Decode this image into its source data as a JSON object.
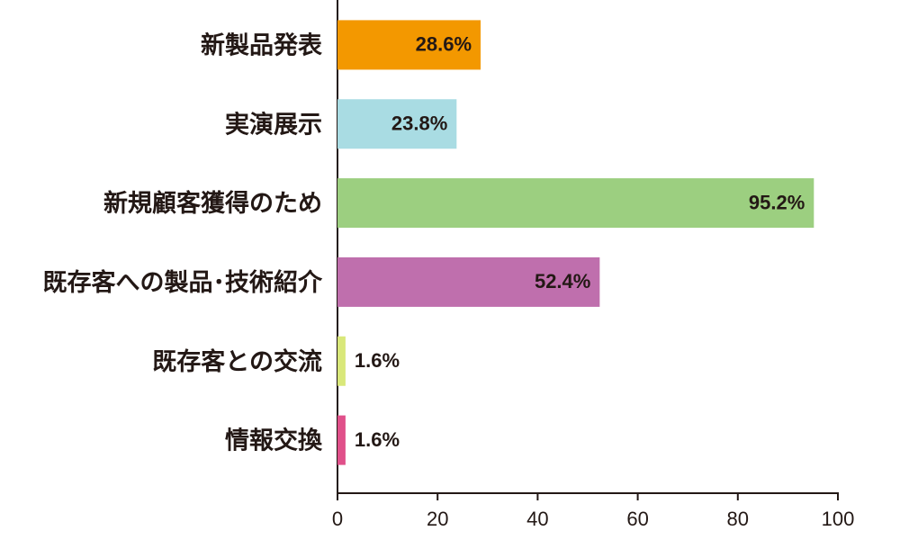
{
  "chart_data": {
    "type": "barh",
    "categories": [
      "新製品発表",
      "実演展示",
      "新規顧客獲得のため",
      "既存客への製品･技術紹介",
      "既存客との交流",
      "情報交換"
    ],
    "values": [
      28.6,
      23.8,
      95.2,
      52.4,
      1.6,
      1.6
    ],
    "value_labels": [
      "28.6%",
      "23.8%",
      "95.2%",
      "52.4%",
      "1.6%",
      "1.6%"
    ],
    "colors": [
      "#f39800",
      "#a9dce3",
      "#9ccf80",
      "#bf6fad",
      "#d9e87a",
      "#e0508a"
    ],
    "xlim": [
      0,
      100
    ],
    "xticks": [
      0,
      20,
      40,
      60,
      80,
      100
    ],
    "grid": false
  }
}
